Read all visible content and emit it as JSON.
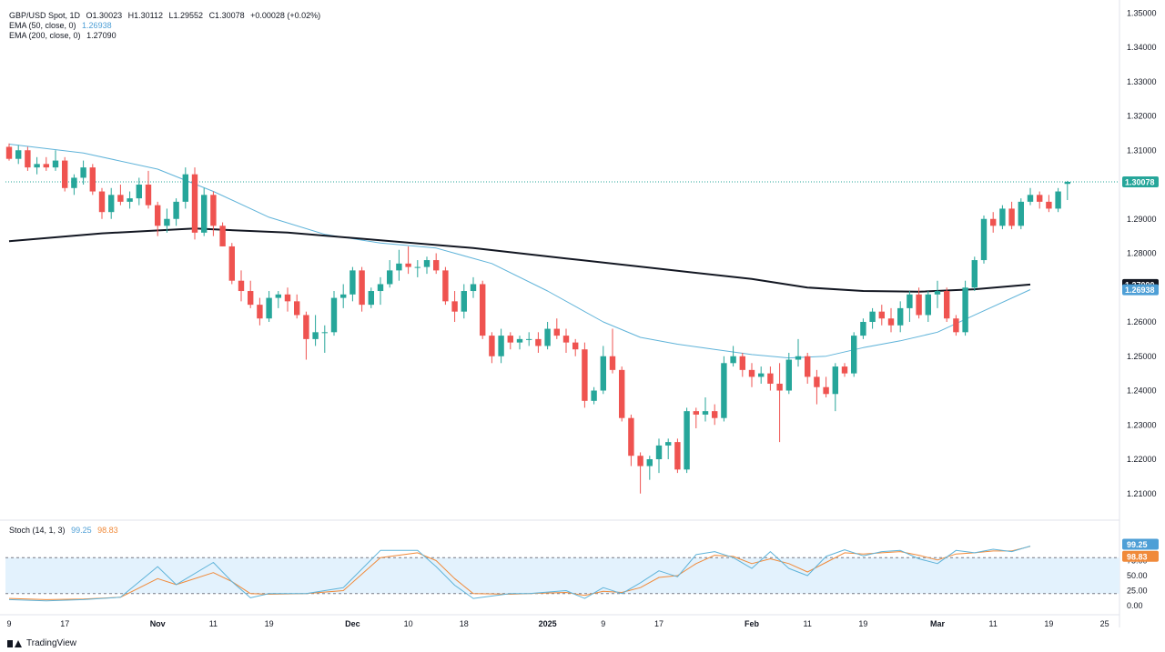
{
  "header": {
    "symbol": "GBP/USD Spot, 1D",
    "open": "O1.30023",
    "high": "H1.30112",
    "low": "L1.29552",
    "close": "C1.30078",
    "change": "+0.00028 (+0.02%)",
    "ema50_label": "EMA (50, close, 0)",
    "ema50_value": "1.26938",
    "ema200_label": "EMA (200, close, 0)",
    "ema200_value": "1.27090"
  },
  "stoch_legend": {
    "label": "Stoch (14, 1, 3)",
    "k": "99.25",
    "d": "98.83"
  },
  "branding": {
    "name": "TradingView"
  },
  "colors": {
    "up": "#26a69a",
    "down": "#ef5350",
    "ema50": "#5fb3d9",
    "ema200": "#131722",
    "stoch_k": "#5fb3d9",
    "stoch_d": "#f08a3a",
    "band": "#e3f2fd",
    "price_tag": "#26a69a",
    "ema200_tag": "#131722",
    "ema50_tag": "#4e9fd6",
    "d_tag": "#f08a3a"
  },
  "chart_data": {
    "type": "candlestick",
    "price_axis": {
      "range": [
        1.2,
        1.35
      ],
      "ticks": [
        "1.21000",
        "1.22000",
        "1.23000",
        "1.24000",
        "1.25000",
        "1.26000",
        "1.27000",
        "1.28000",
        "1.29000",
        "1.30000",
        "1.31000",
        "1.32000",
        "1.33000",
        "1.34000",
        "1.35000"
      ]
    },
    "x_axis": {
      "labels": [
        {
          "text": "9",
          "bar": 0
        },
        {
          "text": "17",
          "bar": 6
        },
        {
          "text": "Nov",
          "bar": 16
        },
        {
          "text": "11",
          "bar": 22
        },
        {
          "text": "19",
          "bar": 28
        },
        {
          "text": "Dec",
          "bar": 37
        },
        {
          "text": "10",
          "bar": 43
        },
        {
          "text": "18",
          "bar": 49
        },
        {
          "text": "2025",
          "bar": 58
        },
        {
          "text": "9",
          "bar": 64
        },
        {
          "text": "17",
          "bar": 70
        },
        {
          "text": "Feb",
          "bar": 80
        },
        {
          "text": "11",
          "bar": 86
        },
        {
          "text": "19",
          "bar": 92
        },
        {
          "text": "Mar",
          "bar": 100
        },
        {
          "text": "11",
          "bar": 106
        },
        {
          "text": "19",
          "bar": 112
        },
        {
          "text": "25",
          "bar": 118
        }
      ]
    },
    "candles": [
      [
        1.311,
        1.312,
        1.307,
        1.3075
      ],
      [
        1.3075,
        1.3115,
        1.306,
        1.31
      ],
      [
        1.31,
        1.311,
        1.304,
        1.305
      ],
      [
        1.305,
        1.308,
        1.303,
        1.306
      ],
      [
        1.306,
        1.308,
        1.304,
        1.305
      ],
      [
        1.305,
        1.31,
        1.304,
        1.307
      ],
      [
        1.307,
        1.308,
        1.298,
        1.299
      ],
      [
        1.299,
        1.303,
        1.297,
        1.302
      ],
      [
        1.302,
        1.307,
        1.3,
        1.305
      ],
      [
        1.305,
        1.306,
        1.297,
        1.298
      ],
      [
        1.298,
        1.299,
        1.29,
        1.292
      ],
      [
        1.292,
        1.299,
        1.29,
        1.297
      ],
      [
        1.297,
        1.3,
        1.294,
        1.295
      ],
      [
        1.295,
        1.298,
        1.293,
        1.296
      ],
      [
        1.296,
        1.302,
        1.294,
        1.3
      ],
      [
        1.3,
        1.304,
        1.293,
        1.294
      ],
      [
        1.294,
        1.295,
        1.285,
        1.288
      ],
      [
        1.288,
        1.293,
        1.286,
        1.29
      ],
      [
        1.29,
        1.296,
        1.288,
        1.295
      ],
      [
        1.295,
        1.305,
        1.293,
        1.303
      ],
      [
        1.303,
        1.305,
        1.284,
        1.286
      ],
      [
        1.286,
        1.299,
        1.285,
        1.297
      ],
      [
        1.297,
        1.298,
        1.285,
        1.288
      ],
      [
        1.288,
        1.289,
        1.282,
        1.282
      ],
      [
        1.282,
        1.283,
        1.271,
        1.272
      ],
      [
        1.272,
        1.275,
        1.266,
        1.269
      ],
      [
        1.269,
        1.272,
        1.264,
        1.265
      ],
      [
        1.265,
        1.267,
        1.259,
        1.261
      ],
      [
        1.261,
        1.269,
        1.26,
        1.267
      ],
      [
        1.267,
        1.269,
        1.264,
        1.268
      ],
      [
        1.268,
        1.27,
        1.263,
        1.266
      ],
      [
        1.266,
        1.268,
        1.261,
        1.262
      ],
      [
        1.262,
        1.263,
        1.249,
        1.255
      ],
      [
        1.255,
        1.262,
        1.253,
        1.257
      ],
      [
        1.257,
        1.259,
        1.251,
        1.257
      ],
      [
        1.257,
        1.269,
        1.256,
        1.267
      ],
      [
        1.267,
        1.271,
        1.264,
        1.268
      ],
      [
        1.268,
        1.276,
        1.266,
        1.275
      ],
      [
        1.275,
        1.276,
        1.263,
        1.265
      ],
      [
        1.265,
        1.27,
        1.264,
        1.269
      ],
      [
        1.269,
        1.273,
        1.265,
        1.271
      ],
      [
        1.271,
        1.278,
        1.27,
        1.275
      ],
      [
        1.275,
        1.281,
        1.272,
        1.277
      ],
      [
        1.277,
        1.282,
        1.274,
        1.276
      ],
      [
        1.276,
        1.278,
        1.273,
        1.276
      ],
      [
        1.276,
        1.279,
        1.274,
        1.278
      ],
      [
        1.278,
        1.28,
        1.274,
        1.275
      ],
      [
        1.275,
        1.276,
        1.265,
        1.266
      ],
      [
        1.266,
        1.269,
        1.26,
        1.263
      ],
      [
        1.263,
        1.271,
        1.261,
        1.269
      ],
      [
        1.269,
        1.273,
        1.267,
        1.271
      ],
      [
        1.271,
        1.272,
        1.255,
        1.256
      ],
      [
        1.256,
        1.257,
        1.248,
        1.25
      ],
      [
        1.25,
        1.258,
        1.248,
        1.256
      ],
      [
        1.256,
        1.257,
        1.252,
        1.254
      ],
      [
        1.254,
        1.256,
        1.252,
        1.255
      ],
      [
        1.255,
        1.257,
        1.253,
        1.255
      ],
      [
        1.255,
        1.257,
        1.251,
        1.253
      ],
      [
        1.253,
        1.26,
        1.252,
        1.258
      ],
      [
        1.258,
        1.261,
        1.255,
        1.256
      ],
      [
        1.256,
        1.258,
        1.251,
        1.254
      ],
      [
        1.254,
        1.255,
        1.25,
        1.252
      ],
      [
        1.252,
        1.254,
        1.235,
        1.237
      ],
      [
        1.237,
        1.241,
        1.236,
        1.24
      ],
      [
        1.24,
        1.253,
        1.239,
        1.25
      ],
      [
        1.25,
        1.258,
        1.245,
        1.246
      ],
      [
        1.246,
        1.247,
        1.231,
        1.232
      ],
      [
        1.232,
        1.233,
        1.218,
        1.221
      ],
      [
        1.221,
        1.222,
        1.21,
        1.218
      ],
      [
        1.218,
        1.221,
        1.214,
        1.22
      ],
      [
        1.22,
        1.226,
        1.216,
        1.224
      ],
      [
        1.224,
        1.226,
        1.22,
        1.225
      ],
      [
        1.225,
        1.226,
        1.216,
        1.217
      ],
      [
        1.217,
        1.235,
        1.216,
        1.234
      ],
      [
        1.234,
        1.235,
        1.229,
        1.233
      ],
      [
        1.233,
        1.238,
        1.231,
        1.234
      ],
      [
        1.234,
        1.236,
        1.23,
        1.232
      ],
      [
        1.232,
        1.25,
        1.231,
        1.248
      ],
      [
        1.248,
        1.253,
        1.247,
        1.25
      ],
      [
        1.25,
        1.251,
        1.244,
        1.246
      ],
      [
        1.246,
        1.248,
        1.241,
        1.244
      ],
      [
        1.244,
        1.247,
        1.242,
        1.245
      ],
      [
        1.245,
        1.247,
        1.24,
        1.242
      ],
      [
        1.242,
        1.248,
        1.225,
        1.24
      ],
      [
        1.24,
        1.251,
        1.239,
        1.249
      ],
      [
        1.249,
        1.255,
        1.247,
        1.25
      ],
      [
        1.25,
        1.251,
        1.242,
        1.244
      ],
      [
        1.244,
        1.246,
        1.236,
        1.241
      ],
      [
        1.241,
        1.244,
        1.238,
        1.239
      ],
      [
        1.239,
        1.248,
        1.234,
        1.247
      ],
      [
        1.247,
        1.248,
        1.244,
        1.245
      ],
      [
        1.245,
        1.257,
        1.244,
        1.256
      ],
      [
        1.256,
        1.261,
        1.255,
        1.26
      ],
      [
        1.26,
        1.264,
        1.258,
        1.263
      ],
      [
        1.263,
        1.265,
        1.259,
        1.261
      ],
      [
        1.261,
        1.264,
        1.257,
        1.259
      ],
      [
        1.259,
        1.266,
        1.257,
        1.264
      ],
      [
        1.264,
        1.269,
        1.26,
        1.268
      ],
      [
        1.268,
        1.27,
        1.261,
        1.262
      ],
      [
        1.262,
        1.269,
        1.26,
        1.268
      ],
      [
        1.268,
        1.272,
        1.264,
        1.269
      ],
      [
        1.269,
        1.27,
        1.26,
        1.261
      ],
      [
        1.261,
        1.262,
        1.256,
        1.257
      ],
      [
        1.257,
        1.272,
        1.256,
        1.27
      ],
      [
        1.27,
        1.279,
        1.269,
        1.278
      ],
      [
        1.278,
        1.291,
        1.277,
        1.29
      ],
      [
        1.29,
        1.292,
        1.286,
        1.288
      ],
      [
        1.288,
        1.294,
        1.287,
        1.293
      ],
      [
        1.293,
        1.295,
        1.287,
        1.288
      ],
      [
        1.288,
        1.296,
        1.287,
        1.295
      ],
      [
        1.295,
        1.299,
        1.294,
        1.297
      ],
      [
        1.297,
        1.298,
        1.293,
        1.295
      ],
      [
        1.295,
        1.297,
        1.292,
        1.293
      ],
      [
        1.293,
        1.299,
        1.292,
        1.298
      ],
      [
        1.3002,
        1.3011,
        1.2955,
        1.3008
      ]
    ],
    "ema50": [
      [
        0,
        1.3118
      ],
      [
        8,
        1.3092
      ],
      [
        16,
        1.3045
      ],
      [
        22,
        1.298
      ],
      [
        28,
        1.2905
      ],
      [
        34,
        1.2855
      ],
      [
        40,
        1.283
      ],
      [
        46,
        1.2815
      ],
      [
        52,
        1.277
      ],
      [
        58,
        1.269
      ],
      [
        64,
        1.26
      ],
      [
        68,
        1.2555
      ],
      [
        72,
        1.2535
      ],
      [
        76,
        1.252
      ],
      [
        80,
        1.2505
      ],
      [
        84,
        1.2495
      ],
      [
        88,
        1.25
      ],
      [
        92,
        1.2525
      ],
      [
        96,
        1.2545
      ],
      [
        100,
        1.257
      ],
      [
        104,
        1.262
      ],
      [
        110,
        1.2694
      ]
    ],
    "ema200": [
      [
        0,
        1.2835
      ],
      [
        10,
        1.2858
      ],
      [
        20,
        1.2872
      ],
      [
        30,
        1.286
      ],
      [
        40,
        1.2838
      ],
      [
        50,
        1.2815
      ],
      [
        60,
        1.2785
      ],
      [
        70,
        1.2755
      ],
      [
        80,
        1.2725
      ],
      [
        86,
        1.27
      ],
      [
        92,
        1.269
      ],
      [
        98,
        1.2688
      ],
      [
        104,
        1.2695
      ],
      [
        110,
        1.2709
      ]
    ],
    "last_price": "1.30078",
    "ema200_last": "1.27090",
    "ema50_last": "1.26938",
    "stoch": {
      "axis_ticks": [
        "75.00",
        "50.00",
        "25.00",
        "0.00"
      ],
      "band": [
        20,
        80
      ],
      "k": [
        [
          0,
          10
        ],
        [
          4,
          8
        ],
        [
          8,
          10
        ],
        [
          12,
          14
        ],
        [
          16,
          65
        ],
        [
          18,
          35
        ],
        [
          22,
          72
        ],
        [
          24,
          40
        ],
        [
          26,
          13
        ],
        [
          28,
          20
        ],
        [
          32,
          20
        ],
        [
          36,
          30
        ],
        [
          40,
          92
        ],
        [
          44,
          92
        ],
        [
          46,
          65
        ],
        [
          48,
          34
        ],
        [
          50,
          12
        ],
        [
          54,
          20
        ],
        [
          56,
          20
        ],
        [
          60,
          25
        ],
        [
          62,
          12
        ],
        [
          64,
          30
        ],
        [
          66,
          20
        ],
        [
          68,
          38
        ],
        [
          70,
          58
        ],
        [
          72,
          48
        ],
        [
          74,
          85
        ],
        [
          76,
          90
        ],
        [
          78,
          80
        ],
        [
          80,
          62
        ],
        [
          82,
          90
        ],
        [
          84,
          62
        ],
        [
          86,
          50
        ],
        [
          88,
          82
        ],
        [
          90,
          93
        ],
        [
          92,
          83
        ],
        [
          94,
          90
        ],
        [
          96,
          92
        ],
        [
          98,
          78
        ],
        [
          100,
          70
        ],
        [
          102,
          92
        ],
        [
          104,
          88
        ],
        [
          106,
          94
        ],
        [
          108,
          90
        ],
        [
          110,
          99.25
        ]
      ],
      "d": [
        [
          0,
          12
        ],
        [
          4,
          10
        ],
        [
          8,
          11
        ],
        [
          12,
          14
        ],
        [
          16,
          45
        ],
        [
          18,
          35
        ],
        [
          22,
          55
        ],
        [
          24,
          40
        ],
        [
          26,
          20
        ],
        [
          28,
          19
        ],
        [
          32,
          20
        ],
        [
          36,
          25
        ],
        [
          40,
          80
        ],
        [
          44,
          88
        ],
        [
          46,
          75
        ],
        [
          48,
          45
        ],
        [
          50,
          20
        ],
        [
          54,
          19
        ],
        [
          56,
          20
        ],
        [
          60,
          22
        ],
        [
          62,
          17
        ],
        [
          64,
          24
        ],
        [
          66,
          22
        ],
        [
          68,
          30
        ],
        [
          70,
          47
        ],
        [
          72,
          50
        ],
        [
          74,
          70
        ],
        [
          76,
          84
        ],
        [
          78,
          82
        ],
        [
          80,
          70
        ],
        [
          82,
          78
        ],
        [
          84,
          70
        ],
        [
          86,
          56
        ],
        [
          88,
          72
        ],
        [
          90,
          88
        ],
        [
          92,
          86
        ],
        [
          94,
          88
        ],
        [
          96,
          90
        ],
        [
          98,
          84
        ],
        [
          100,
          76
        ],
        [
          102,
          86
        ],
        [
          104,
          88
        ],
        [
          106,
          91
        ],
        [
          108,
          91
        ],
        [
          110,
          98.83
        ]
      ]
    }
  }
}
